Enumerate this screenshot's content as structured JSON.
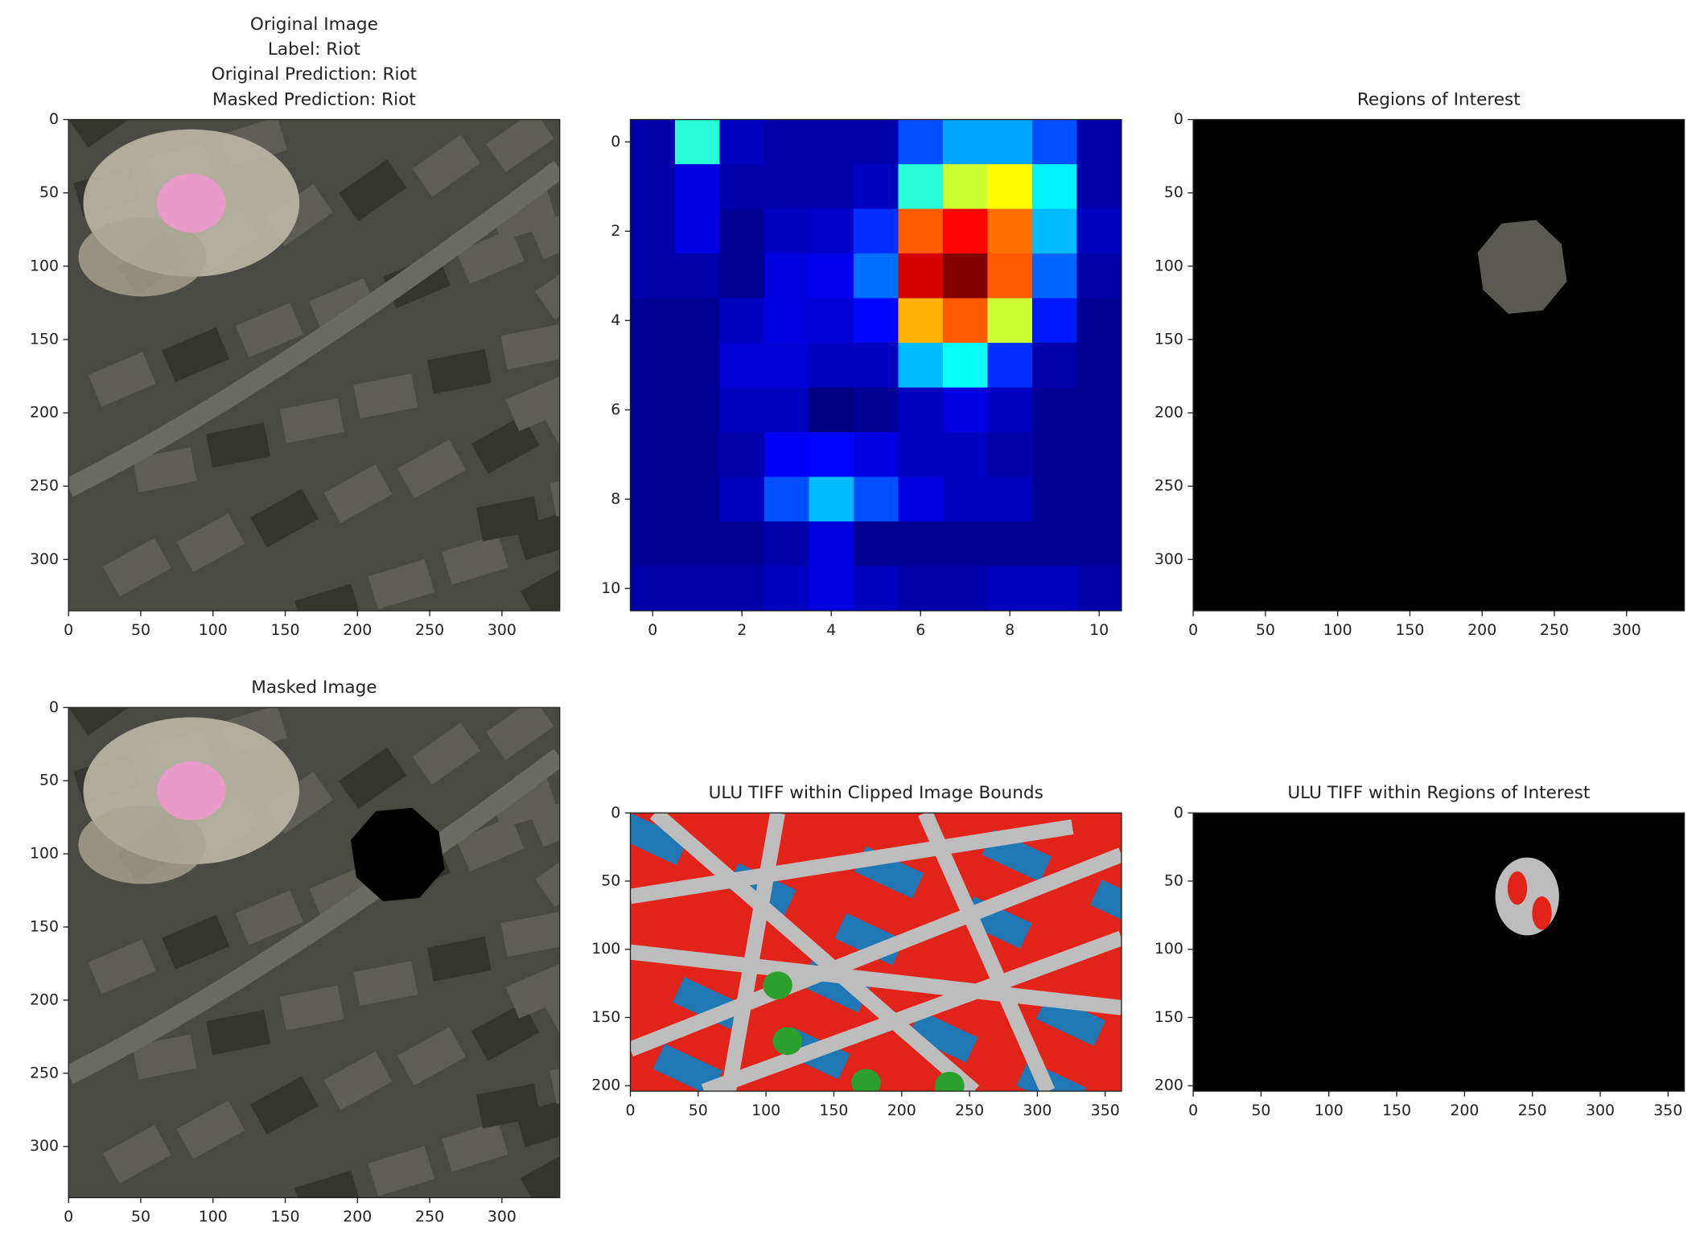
{
  "chart_data": [
    {
      "type": "image",
      "title": [
        "Original Image",
        "Label: Riot",
        "Original Prediction: Riot",
        "Masked Prediction: Riot"
      ],
      "xlim": [
        0,
        340
      ],
      "ylim": [
        335,
        0
      ],
      "xticks": [
        0,
        50,
        100,
        150,
        200,
        250,
        300
      ],
      "yticks": [
        0,
        50,
        100,
        150,
        200,
        250,
        300
      ]
    },
    {
      "type": "heatmap",
      "colormap": "jet",
      "xlim": [
        -0.5,
        10.5
      ],
      "ylim": [
        10.5,
        -0.5
      ],
      "xticks": [
        0,
        2,
        4,
        6,
        8,
        10
      ],
      "yticks": [
        0,
        2,
        4,
        6,
        8,
        10
      ],
      "z": [
        [
          0.1,
          0.45,
          0.12,
          0.1,
          0.1,
          0.1,
          0.25,
          0.33,
          0.33,
          0.25,
          0.1
        ],
        [
          0.1,
          0.15,
          0.1,
          0.1,
          0.1,
          0.12,
          0.45,
          0.6,
          0.65,
          0.4,
          0.1
        ],
        [
          0.1,
          0.15,
          0.08,
          0.12,
          0.13,
          0.22,
          0.8,
          0.88,
          0.78,
          0.35,
          0.12
        ],
        [
          0.1,
          0.1,
          0.08,
          0.15,
          0.16,
          0.28,
          0.92,
          1.0,
          0.8,
          0.27,
          0.1
        ],
        [
          0.08,
          0.08,
          0.12,
          0.15,
          0.14,
          0.18,
          0.72,
          0.8,
          0.6,
          0.2,
          0.08
        ],
        [
          0.08,
          0.08,
          0.14,
          0.14,
          0.12,
          0.12,
          0.35,
          0.42,
          0.22,
          0.1,
          0.08
        ],
        [
          0.08,
          0.08,
          0.12,
          0.12,
          0.06,
          0.08,
          0.12,
          0.15,
          0.12,
          0.08,
          0.08
        ],
        [
          0.08,
          0.08,
          0.1,
          0.17,
          0.18,
          0.15,
          0.12,
          0.12,
          0.1,
          0.08,
          0.08
        ],
        [
          0.08,
          0.08,
          0.12,
          0.25,
          0.35,
          0.25,
          0.15,
          0.12,
          0.12,
          0.08,
          0.08
        ],
        [
          0.08,
          0.08,
          0.08,
          0.1,
          0.15,
          0.08,
          0.08,
          0.08,
          0.08,
          0.08,
          0.08
        ],
        [
          0.1,
          0.1,
          0.1,
          0.12,
          0.15,
          0.12,
          0.1,
          0.1,
          0.12,
          0.12,
          0.1
        ]
      ]
    },
    {
      "type": "image",
      "title": [
        "Regions of Interest"
      ],
      "xlim": [
        0,
        340
      ],
      "ylim": [
        335,
        0
      ],
      "xticks": [
        0,
        50,
        100,
        150,
        200,
        250,
        300
      ],
      "yticks": [
        0,
        50,
        100,
        150,
        200,
        250,
        300
      ]
    },
    {
      "type": "image",
      "title": [
        "Masked Image"
      ],
      "xlim": [
        0,
        340
      ],
      "ylim": [
        335,
        0
      ],
      "xticks": [
        0,
        50,
        100,
        150,
        200,
        250,
        300
      ],
      "yticks": [
        0,
        50,
        100,
        150,
        200,
        250,
        300
      ]
    },
    {
      "type": "image",
      "title": [
        "ULU TIFF within Clipped Image Bounds"
      ],
      "xlim": [
        0,
        362
      ],
      "ylim": [
        204,
        0
      ],
      "xticks": [
        0,
        50,
        100,
        150,
        200,
        250,
        300,
        350
      ],
      "yticks": [
        0,
        50,
        100,
        150,
        200
      ]
    },
    {
      "type": "image",
      "title": [
        "ULU TIFF within Regions of Interest"
      ],
      "xlim": [
        0,
        362
      ],
      "ylim": [
        204,
        0
      ],
      "xticks": [
        0,
        50,
        100,
        150,
        200,
        250,
        300,
        350
      ],
      "yticks": [
        0,
        50,
        100,
        150,
        200
      ]
    }
  ]
}
